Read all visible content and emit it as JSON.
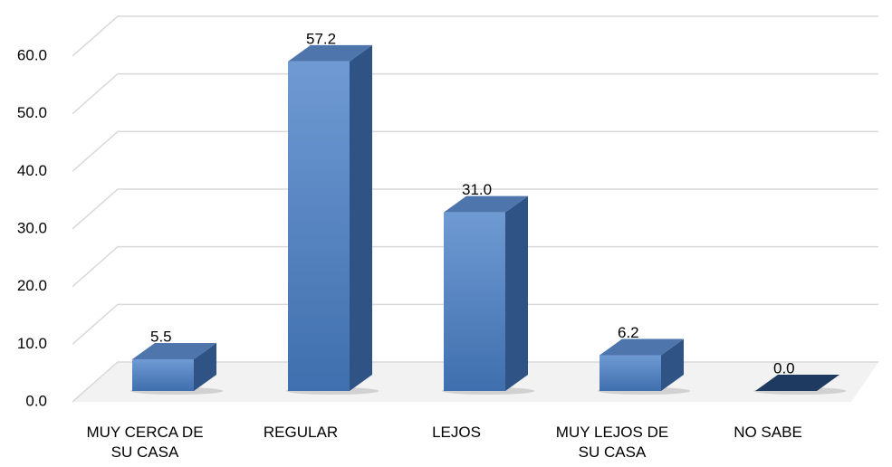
{
  "chart_data": {
    "type": "bar3d",
    "categories": [
      "MUY CERCA DE SU CASA",
      "REGULAR",
      "LEJOS",
      "MUY LEJOS DE SU CASA",
      "NO SABE"
    ],
    "values": [
      5.5,
      57.2,
      31.0,
      6.2,
      0.0
    ],
    "value_labels": [
      "5.5",
      "57.2",
      "31.0",
      "6.2",
      "0.0"
    ],
    "color": "#4f81bd",
    "ylim": [
      0,
      60
    ],
    "yticks": [
      {
        "value": 0,
        "label": "0.0"
      },
      {
        "value": 10,
        "label": "10.0"
      },
      {
        "value": 20,
        "label": "20.0"
      },
      {
        "value": 30,
        "label": "30.0"
      },
      {
        "value": 40,
        "label": "40.0"
      },
      {
        "value": 50,
        "label": "50.0"
      },
      {
        "value": 60,
        "label": "60.0"
      }
    ],
    "grid": true
  }
}
